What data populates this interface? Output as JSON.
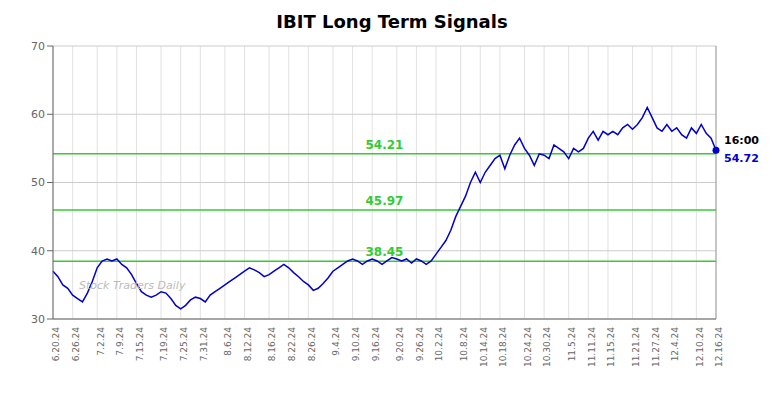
{
  "chart_data": {
    "type": "line",
    "title": "IBIT Long Term Signals",
    "categories": [
      "6.20.24",
      null,
      null,
      null,
      "6.26.24",
      null,
      null,
      null,
      null,
      "7.2.24",
      null,
      null,
      null,
      "7.9.24",
      null,
      null,
      null,
      "7.15.24",
      null,
      null,
      null,
      null,
      "7.19.24",
      null,
      null,
      null,
      "7.25.24",
      null,
      null,
      null,
      "7.31.24",
      null,
      null,
      null,
      null,
      "8.6.24",
      null,
      null,
      null,
      "8.12.24",
      null,
      null,
      null,
      null,
      "8.16.24",
      null,
      null,
      null,
      "8.22.24",
      null,
      null,
      null,
      "8.26.24",
      null,
      null,
      null,
      null,
      "9.4.24",
      null,
      null,
      null,
      "9.10.24",
      null,
      null,
      null,
      "9.16.24",
      null,
      null,
      null,
      null,
      "9.20.24",
      null,
      null,
      null,
      "9.26.24",
      null,
      null,
      null,
      "10.2.24",
      null,
      null,
      null,
      null,
      "10.8.24",
      null,
      null,
      null,
      "10.14.24",
      null,
      null,
      null,
      "10.18.24",
      null,
      null,
      null,
      null,
      "10.24.24",
      null,
      null,
      null,
      "10.30.24",
      null,
      null,
      null,
      null,
      "11.5.24",
      null,
      null,
      null,
      "11.11.24",
      null,
      null,
      null,
      "11.15.24",
      null,
      null,
      null,
      null,
      "11.21.24",
      null,
      null,
      null,
      "11.27.24",
      null,
      null,
      null,
      "12.4.24",
      null,
      null,
      null,
      null,
      "12.10.24",
      null,
      null,
      null,
      "12.16.24"
    ],
    "values": [
      37.0,
      36.2,
      35.0,
      34.5,
      33.5,
      33.0,
      32.5,
      33.8,
      35.5,
      37.5,
      38.5,
      38.8,
      38.5,
      38.8,
      38.0,
      37.5,
      36.5,
      35.2,
      34.0,
      33.5,
      33.2,
      33.5,
      34.0,
      33.8,
      33.0,
      32.0,
      31.5,
      32.0,
      32.8,
      33.2,
      33.0,
      32.5,
      33.5,
      34.0,
      34.5,
      35.0,
      35.5,
      36.0,
      36.5,
      37.0,
      37.5,
      37.2,
      36.8,
      36.2,
      36.5,
      37.0,
      37.5,
      38.0,
      37.5,
      36.8,
      36.2,
      35.5,
      35.0,
      34.2,
      34.5,
      35.2,
      36.0,
      37.0,
      37.5,
      38.0,
      38.5,
      38.8,
      38.5,
      38.0,
      38.5,
      38.8,
      38.5,
      38.0,
      38.5,
      39.0,
      38.8,
      38.5,
      38.8,
      38.2,
      38.8,
      38.5,
      38.0,
      38.5,
      39.5,
      40.5,
      41.5,
      43.0,
      45.0,
      46.5,
      48.0,
      50.0,
      51.5,
      50.0,
      51.5,
      52.5,
      53.5,
      54.0,
      52.0,
      54.0,
      55.5,
      56.5,
      55.0,
      54.0,
      52.5,
      54.2,
      54.0,
      53.5,
      55.5,
      55.0,
      54.5,
      53.5,
      55.0,
      54.5,
      55.0,
      56.5,
      57.5,
      56.2,
      57.5,
      57.0,
      57.5,
      57.0,
      58.0,
      58.5,
      57.8,
      58.5,
      59.5,
      61.0,
      59.5,
      58.0,
      57.5,
      58.5,
      57.5,
      58.0,
      57.0,
      56.5,
      58.0,
      57.2,
      58.5,
      57.2,
      56.5,
      54.72
    ],
    "color": "#0000cc",
    "ylim": [
      30,
      70
    ],
    "yticks": [
      30,
      40,
      50,
      60,
      70
    ],
    "grid": true,
    "hlines": [
      {
        "y": 54.21,
        "label": "54.21",
        "color": "#33cc33"
      },
      {
        "y": 45.97,
        "label": "45.97",
        "color": "#33cc33"
      },
      {
        "y": 38.45,
        "label": "38.45",
        "color": "#33cc33"
      }
    ],
    "annotations": [
      {
        "text": "16:00"
      },
      {
        "text": "54.72",
        "color": "#0000cc"
      }
    ],
    "watermark": {
      "text": "Stock Traders Daily",
      "color": "#bbbbbb"
    }
  }
}
